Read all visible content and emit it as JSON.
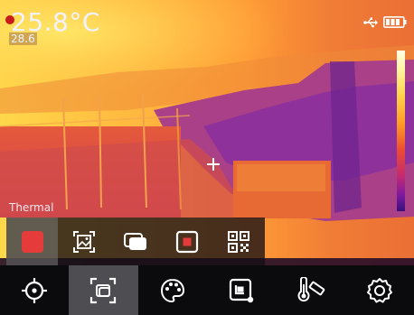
{
  "readout": {
    "main_temperature": "25.8°C",
    "secondary_temperature": "28.6"
  },
  "status": {
    "icons": [
      "usb-icon",
      "battery-icon"
    ]
  },
  "mode": {
    "label": "Thermal",
    "options": [
      "thermal-mode",
      "image-mode",
      "blend-mode",
      "picture-in-picture-mode",
      "qr-code-mode"
    ],
    "selected": "thermal-mode"
  },
  "toolbar": {
    "items": [
      "target-icon",
      "image-mode-icon",
      "palette-icon",
      "capture-icon",
      "thermometer-ruler-icon",
      "settings-icon"
    ],
    "selected": "image-mode-icon"
  },
  "palette": {
    "name": "ironbow",
    "accent": "#e53b3b"
  }
}
